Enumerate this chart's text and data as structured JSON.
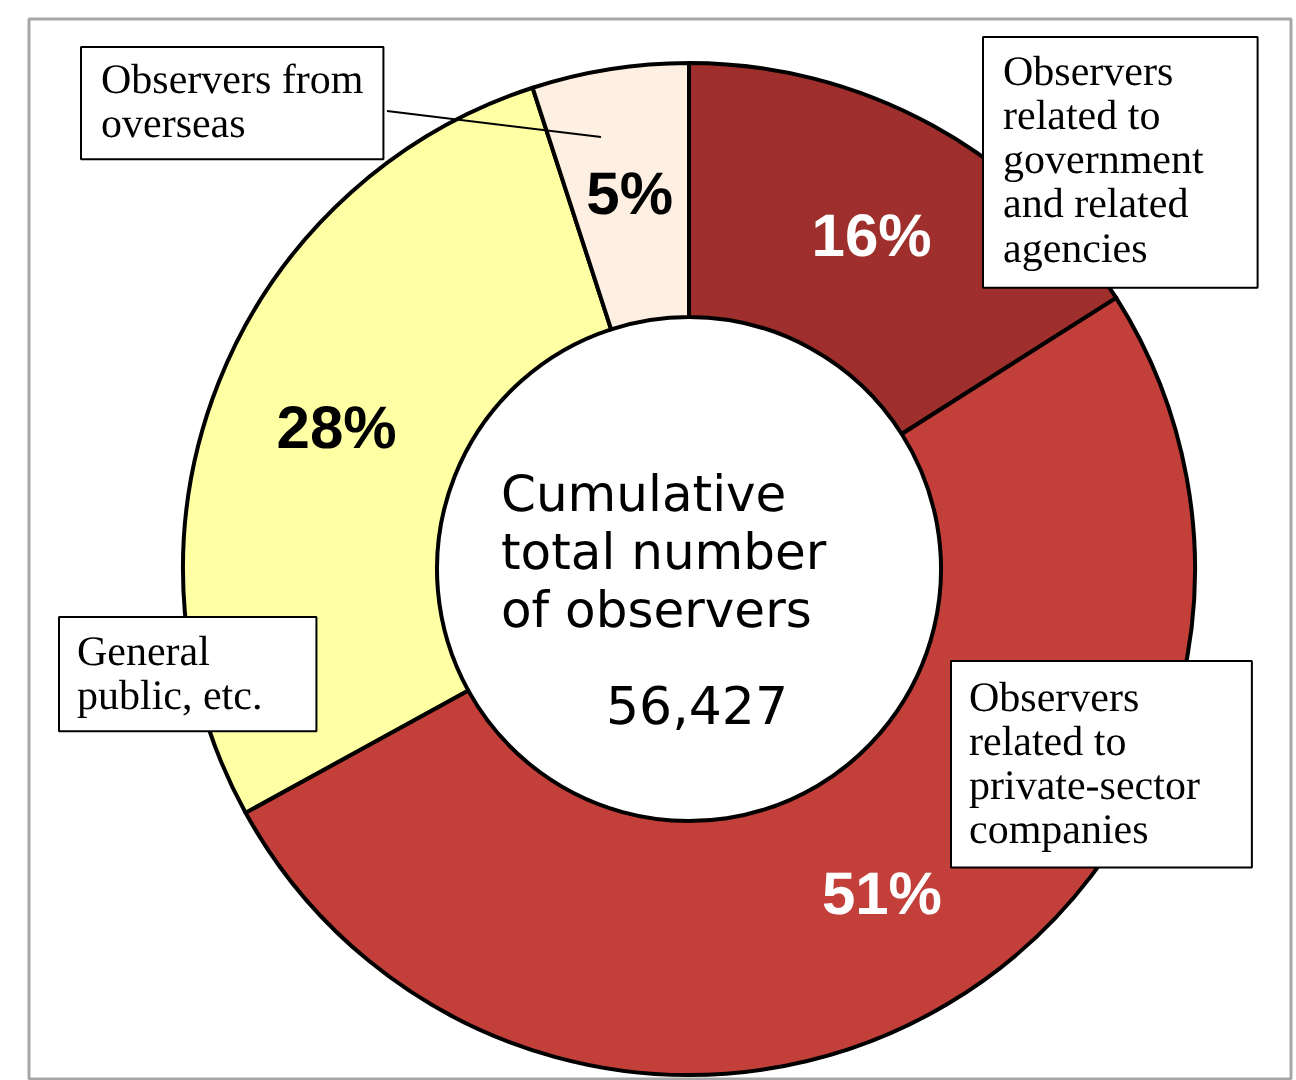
{
  "chart_data": {
    "type": "donut",
    "title": "Cumulative total number of observers",
    "annotations": [
      "56,427"
    ],
    "categories": [
      "Observers related to government and related agencies",
      "Observers related to private-sector companies",
      "General public, etc.",
      "Observers from overseas"
    ],
    "values": [
      16,
      51,
      28,
      5
    ],
    "value_labels": [
      "16%",
      "51%",
      "28%",
      "5%"
    ],
    "colors": [
      "#9e2f2c",
      "#c23f3a",
      "#ffffa3",
      "#fdf0e2"
    ]
  }
}
